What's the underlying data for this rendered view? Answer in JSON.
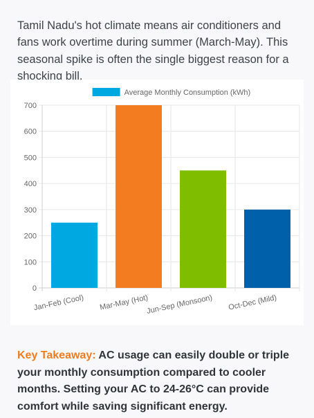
{
  "intro": {
    "text": "Tamil Nadu's hot climate means air conditioners and fans work overtime during summer (March-May). This seasonal spike is often the single biggest reason for a shocking bill."
  },
  "chart_data": {
    "type": "bar",
    "categories": [
      "Jan-Feb (Cool)",
      "Mar-May (Hot)",
      "Jun-Sep (Monsoon)",
      "Oct-Dec (Mild)"
    ],
    "series": [
      {
        "name": "Average Monthly Consumption (kWh)",
        "values": [
          250,
          700,
          450,
          300
        ],
        "colors": [
          "#00a8e1",
          "#f47c20",
          "#7ebd00",
          "#0060aa"
        ]
      }
    ],
    "legend_color": "#00a8e1",
    "ylim": [
      0,
      700
    ],
    "yticks": [
      0,
      100,
      200,
      300,
      400,
      500,
      600,
      700
    ],
    "grid": true,
    "legend": "top-center"
  },
  "takeaway": {
    "label": "Key Takeaway:",
    "text": "AC usage can easily double or triple your monthly consumption compared to cooler months. Setting your AC to 24-26°C can provide comfort while saving significant energy."
  }
}
